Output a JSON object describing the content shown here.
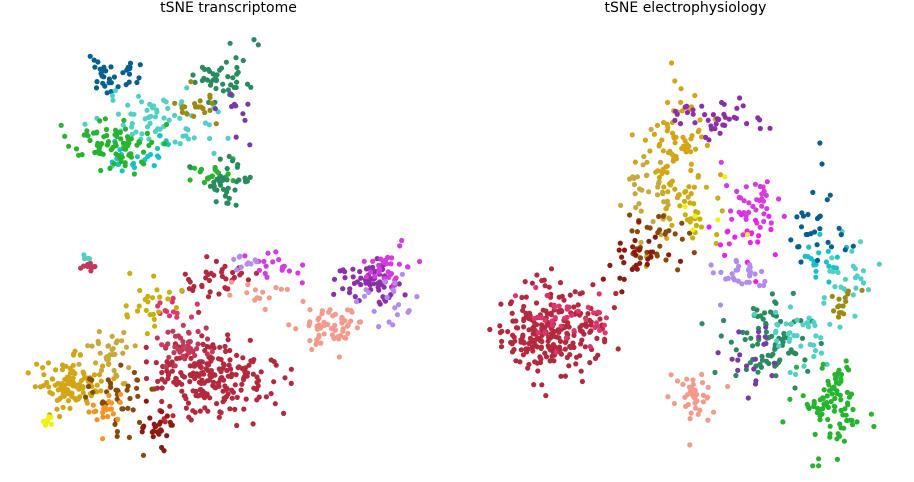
{
  "figure": {
    "left_title": "tSNE transcriptome",
    "right_title": "tSNE electrophysiology"
  },
  "colors": {
    "dark_blue": "#07608f",
    "turquoise": "#4fd1c5",
    "cyan": "#17c3c7",
    "green": "#27b42f",
    "dark_green": "#2a8a60",
    "olive": "#9b8a12",
    "purple": "#7a3aa8",
    "crimson": "#b5293f",
    "pink_red": "#e0356c",
    "rose": "#c4385a",
    "salmon": "#f59a8c",
    "lavender": "#b38cf0",
    "magenta": "#d63ae0",
    "violet": "#8e2fa8",
    "gold": "#d4a515",
    "ochre": "#c9a93a",
    "brown": "#8a4a0c",
    "dark_red": "#8c1a10",
    "orange": "#f5941f",
    "yellow": "#f2f20a",
    "bright_magenta": "#f31bf5",
    "mustard": "#c8b10c"
  },
  "chart_data": [
    {
      "type": "scatter",
      "title": "tSNE transcriptome",
      "xlabel": "",
      "ylabel": "",
      "axes_visible": false,
      "grid": false,
      "xlim": [
        0,
        100
      ],
      "ylim": [
        0,
        100
      ],
      "clusters": [
        {
          "color": "dark_blue",
          "n": 35,
          "center": [
            23.5,
            90.2
          ],
          "spread": [
            5.5,
            2.5
          ]
        },
        {
          "color": "turquoise",
          "n": 70,
          "center": [
            31.9,
            78.9
          ],
          "spread": [
            9.0,
            4.5
          ]
        },
        {
          "color": "cyan",
          "n": 25,
          "center": [
            28.1,
            71.6
          ],
          "spread": [
            4.5,
            3.0
          ]
        },
        {
          "color": "green",
          "n": 80,
          "center": [
            22.3,
            74.1
          ],
          "spread": [
            6.0,
            3.5
          ]
        },
        {
          "color": "green",
          "n": 20,
          "center": [
            44.8,
            67.2
          ],
          "spread": [
            5.0,
            3.0
          ]
        },
        {
          "color": "dark_green",
          "n": 45,
          "center": [
            49.2,
            89.2
          ],
          "spread": [
            4.5,
            3.5
          ]
        },
        {
          "color": "dark_green",
          "n": 40,
          "center": [
            50.0,
            64.8
          ],
          "spread": [
            3.5,
            4.0
          ]
        },
        {
          "color": "olive",
          "n": 20,
          "center": [
            42.0,
            83.0
          ],
          "spread": [
            3.5,
            2.5
          ]
        },
        {
          "color": "purple",
          "n": 10,
          "center": [
            51.5,
            81.0
          ],
          "spread": [
            3.0,
            5.0
          ]
        },
        {
          "color": "crimson",
          "n": 230,
          "center": [
            46.0,
            21.5
          ],
          "spread": [
            10.0,
            6.0
          ]
        },
        {
          "color": "rose",
          "n": 40,
          "center": [
            39.5,
            28.5
          ],
          "spread": [
            4.5,
            3.0
          ]
        },
        {
          "color": "crimson",
          "n": 35,
          "center": [
            47.0,
            43.0
          ],
          "spread": [
            6.0,
            3.0
          ]
        },
        {
          "color": "pink_red",
          "n": 15,
          "center": [
            37.0,
            36.0
          ],
          "spread": [
            3.0,
            4.0
          ]
        },
        {
          "color": "salmon",
          "n": 60,
          "center": [
            74.5,
            32.5
          ],
          "spread": [
            5.0,
            3.0
          ]
        },
        {
          "color": "salmon",
          "n": 15,
          "center": [
            59.0,
            40.0
          ],
          "spread": [
            4.5,
            2.0
          ]
        },
        {
          "color": "violet",
          "n": 60,
          "center": [
            83.5,
            43.5
          ],
          "spread": [
            5.5,
            4.0
          ]
        },
        {
          "color": "magenta",
          "n": 30,
          "center": [
            88.0,
            45.5
          ],
          "spread": [
            4.5,
            3.0
          ]
        },
        {
          "color": "lavender",
          "n": 20,
          "center": [
            88.5,
            38.5
          ],
          "spread": [
            6.0,
            4.0
          ]
        },
        {
          "color": "magenta",
          "n": 20,
          "center": [
            60.0,
            46.0
          ],
          "spread": [
            6.0,
            2.0
          ]
        },
        {
          "color": "lavender",
          "n": 10,
          "center": [
            53.0,
            48.0
          ],
          "spread": [
            2.5,
            1.5
          ]
        },
        {
          "color": "gold",
          "n": 110,
          "center": [
            12.5,
            19.5
          ],
          "spread": [
            5.0,
            4.0
          ]
        },
        {
          "color": "ochre",
          "n": 40,
          "center": [
            21.5,
            26.0
          ],
          "spread": [
            4.0,
            4.5
          ]
        },
        {
          "color": "brown",
          "n": 40,
          "center": [
            24.0,
            15.5
          ],
          "spread": [
            5.0,
            6.0
          ]
        },
        {
          "color": "orange",
          "n": 20,
          "center": [
            20.5,
            13.5
          ],
          "spread": [
            3.0,
            3.0
          ]
        },
        {
          "color": "dark_red",
          "n": 25,
          "center": [
            33.0,
            9.0
          ],
          "spread": [
            3.0,
            3.0
          ]
        },
        {
          "color": "yellow",
          "n": 8,
          "center": [
            6.8,
            10.5
          ],
          "spread": [
            1.0,
            1.0
          ]
        },
        {
          "color": "mustard",
          "n": 25,
          "center": [
            31.5,
            38.0
          ],
          "spread": [
            5.0,
            5.0
          ]
        },
        {
          "color": "rose",
          "n": 10,
          "center": [
            16.5,
            46.5
          ],
          "spread": [
            1.5,
            1.0
          ]
        },
        {
          "color": "turquoise",
          "n": 4,
          "center": [
            16.5,
            48.5
          ],
          "spread": [
            0.6,
            0.5
          ]
        }
      ]
    },
    {
      "type": "scatter",
      "title": "tSNE electrophysiology",
      "xlabel": "",
      "ylabel": "",
      "axes_visible": false,
      "grid": false,
      "xlim": [
        0,
        100
      ],
      "ylim": [
        0,
        100
      ],
      "clusters": [
        {
          "color": "gold",
          "n": 90,
          "center": [
            46.5,
            72.5
          ],
          "spread": [
            5.0,
            10.5
          ]
        },
        {
          "color": "ochre",
          "n": 40,
          "center": [
            41.5,
            63.0
          ],
          "spread": [
            5.0,
            8.0
          ]
        },
        {
          "color": "mustard",
          "n": 25,
          "center": [
            52.0,
            58.5
          ],
          "spread": [
            4.5,
            4.0
          ]
        },
        {
          "color": "brown",
          "n": 30,
          "center": [
            43.0,
            54.0
          ],
          "spread": [
            6.0,
            5.0
          ]
        },
        {
          "color": "dark_red",
          "n": 30,
          "center": [
            38.0,
            48.0
          ],
          "spread": [
            5.0,
            4.5
          ]
        },
        {
          "color": "crimson",
          "n": 250,
          "center": [
            17.0,
            31.5
          ],
          "spread": [
            8.0,
            6.5
          ]
        },
        {
          "color": "pink_red",
          "n": 40,
          "center": [
            21.0,
            34.0
          ],
          "spread": [
            7.0,
            5.0
          ]
        },
        {
          "color": "violet",
          "n": 40,
          "center": [
            56.5,
            80.5
          ],
          "spread": [
            6.5,
            3.0
          ]
        },
        {
          "color": "magenta",
          "n": 40,
          "center": [
            65.0,
            60.5
          ],
          "spread": [
            4.5,
            5.0
          ]
        },
        {
          "color": "bright_magenta",
          "n": 20,
          "center": [
            63.0,
            52.0
          ],
          "spread": [
            5.0,
            4.0
          ]
        },
        {
          "color": "lavender",
          "n": 30,
          "center": [
            62.0,
            44.5
          ],
          "spread": [
            4.0,
            3.0
          ]
        },
        {
          "color": "dark_green",
          "n": 80,
          "center": [
            69.5,
            28.5
          ],
          "spread": [
            6.5,
            6.0
          ]
        },
        {
          "color": "turquoise",
          "n": 40,
          "center": [
            76.5,
            30.0
          ],
          "spread": [
            6.5,
            5.0
          ]
        },
        {
          "color": "cyan",
          "n": 20,
          "center": [
            83.0,
            47.5
          ],
          "spread": [
            4.5,
            3.0
          ]
        },
        {
          "color": "turquoise",
          "n": 25,
          "center": [
            88.0,
            44.0
          ],
          "spread": [
            4.5,
            6.0
          ]
        },
        {
          "color": "dark_blue",
          "n": 30,
          "center": [
            81.0,
            56.0
          ],
          "spread": [
            6.0,
            8.0
          ]
        },
        {
          "color": "green",
          "n": 90,
          "center": [
            84.5,
            14.5
          ],
          "spread": [
            5.0,
            7.0
          ]
        },
        {
          "color": "olive",
          "n": 15,
          "center": [
            86.0,
            38.0
          ],
          "spread": [
            3.0,
            3.0
          ]
        },
        {
          "color": "salmon",
          "n": 40,
          "center": [
            52.0,
            17.0
          ],
          "spread": [
            4.5,
            5.0
          ]
        },
        {
          "color": "purple",
          "n": 20,
          "center": [
            66.0,
            27.0
          ],
          "spread": [
            5.0,
            7.0
          ]
        },
        {
          "color": "yellow",
          "n": 6,
          "center": [
            57.0,
            57.0
          ],
          "spread": [
            6.0,
            6.0
          ]
        }
      ]
    }
  ]
}
